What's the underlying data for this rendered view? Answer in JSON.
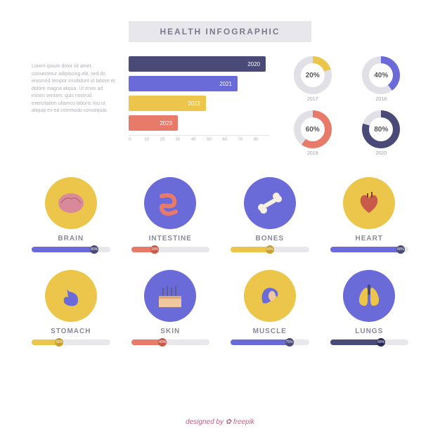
{
  "title": "HEALTH INFOGRAPHIC",
  "title_bg": "#e8e8ec",
  "intro": "Lorem ipsum dolor sit amet, consectetur adipiscing elit, sed do eiusmod tempor incididunt ut labore et dolore magna aliqua. Ut enim ad minim veniam, quis nostrud exercitation ullamco laboris nisi ut aliquip ex ea commodo consequat.",
  "bar_chart": {
    "type": "bar",
    "bars": [
      {
        "label": "2020",
        "value": 78,
        "color": "#4a4a78"
      },
      {
        "label": "2021",
        "value": 62,
        "color": "#6a6ad8"
      },
      {
        "label": "2022",
        "value": 44,
        "color": "#ecc64a"
      },
      {
        "label": "2023",
        "value": 28,
        "color": "#e87a6a"
      }
    ],
    "xlim": 80,
    "ticks": [
      "0",
      "10",
      "20",
      "30",
      "40",
      "50",
      "60",
      "70",
      "80"
    ]
  },
  "donuts": [
    {
      "pct": 20,
      "year": "2017",
      "ring_color": "#ecc64a",
      "track": "#e0e0e6"
    },
    {
      "pct": 40,
      "year": "2018",
      "ring_color": "#6a6ad8",
      "track": "#e0e0e6"
    },
    {
      "pct": 60,
      "year": "2019",
      "ring_color": "#e87a6a",
      "track": "#e0e0e6"
    },
    {
      "pct": 80,
      "year": "2020",
      "ring_color": "#4a4a78",
      "track": "#e0e0e6"
    }
  ],
  "organs": [
    {
      "name": "BRAIN",
      "circle": "#ecc64a",
      "icon": "brain",
      "pct": 80,
      "fill": "#6a6ad8",
      "knob": "#4a4a78"
    },
    {
      "name": "INTESTINE",
      "circle": "#6a6ad8",
      "icon": "intestine",
      "pct": 30,
      "fill": "#e87a6a",
      "knob": "#c85a4a"
    },
    {
      "name": "BONES",
      "circle": "#6a6ad8",
      "icon": "bones",
      "pct": 50,
      "fill": "#ecc64a",
      "knob": "#c8a030"
    },
    {
      "name": "HEART",
      "circle": "#ecc64a",
      "icon": "heart",
      "pct": 90,
      "fill": "#6a6ad8",
      "knob": "#4a4a78"
    },
    {
      "name": "STOMACH",
      "circle": "#ecc64a",
      "icon": "stomach",
      "pct": 35,
      "fill": "#ecc64a",
      "knob": "#c8a030"
    },
    {
      "name": "SKIN",
      "circle": "#6a6ad8",
      "icon": "skin",
      "pct": 40,
      "fill": "#e87a6a",
      "knob": "#c85a4a"
    },
    {
      "name": "MUSCLE",
      "circle": "#ecc64a",
      "icon": "muscle",
      "pct": 75,
      "fill": "#6a6ad8",
      "knob": "#4a4a78"
    },
    {
      "name": "LUNGS",
      "circle": "#6a6ad8",
      "icon": "lungs",
      "pct": 65,
      "fill": "#4a4a78",
      "knob": "#2a2a58"
    }
  ],
  "credit": "designed by ✿ freepik"
}
